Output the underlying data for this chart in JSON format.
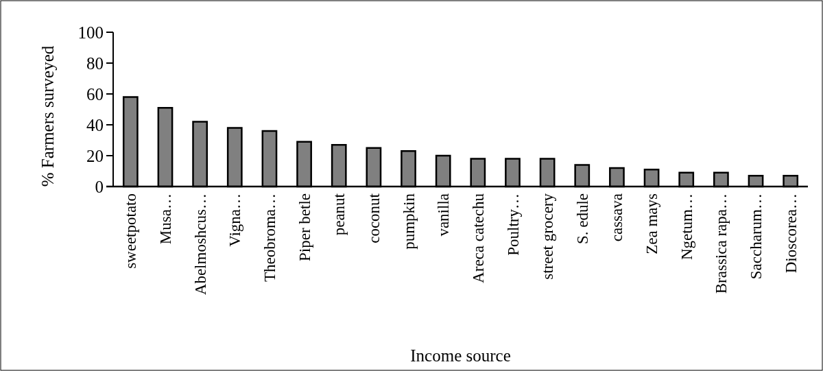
{
  "chart_data": {
    "type": "bar",
    "xlabel": "Income source",
    "ylabel": "% Farmers surveyed",
    "categories": [
      "sweetpotato",
      "Musa…",
      "Abelmoshcus…",
      "Vigna…",
      "Theobroma…",
      "Piper betle",
      "peanut",
      "coconut",
      "pumpkin",
      "vanilla",
      "Areca catechu",
      "Poultry…",
      "street grocery",
      "S. edule",
      "cassava",
      "Zea mays",
      "Ngetum…",
      "Brassica rapa…",
      "Saccharum…",
      "Dioscorea…"
    ],
    "values": [
      58,
      51,
      42,
      38,
      36,
      29,
      27,
      25,
      23,
      20,
      18,
      18,
      18,
      14,
      12,
      11,
      9,
      9,
      7,
      7
    ],
    "color": "#808080",
    "ylim": [
      0,
      100
    ],
    "yticks": [
      0,
      20,
      40,
      60,
      80,
      100
    ],
    "grid": false
  }
}
